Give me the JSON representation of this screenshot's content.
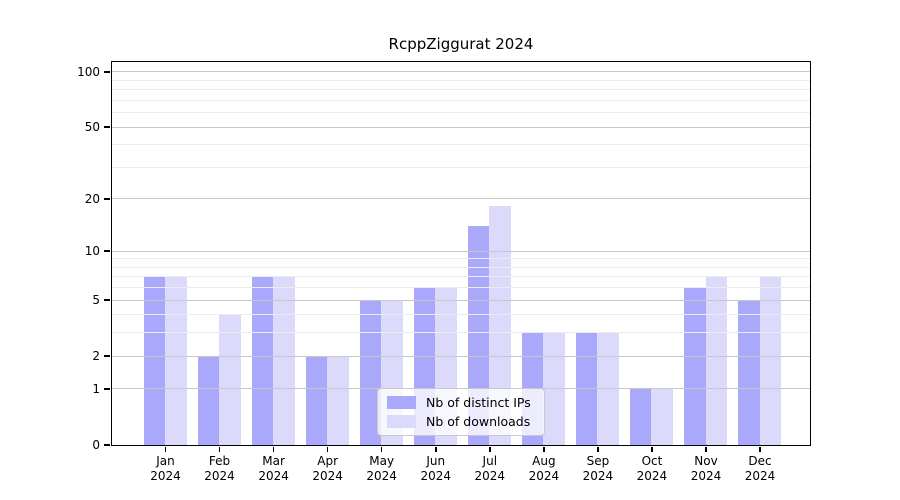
{
  "title": "RcppZiggurat 2024",
  "colors": {
    "bar_distinct_ips": "#a9a8fa",
    "bar_downloads": "#dcdafb",
    "grid_major": "#c8c8c8",
    "grid_minor": "#ececec",
    "axis": "#000000",
    "legend_border": "#c9c9c9",
    "legend_bg": "rgba(255,255,255,0.78)"
  },
  "legend": {
    "items": [
      {
        "label": "Nb of distinct IPs",
        "color_key": "bar_distinct_ips"
      },
      {
        "label": "Nb of downloads",
        "color_key": "bar_downloads"
      }
    ]
  },
  "chart_data": {
    "type": "bar",
    "title": "RcppZiggurat 2024",
    "yscale": "log1p",
    "categories": [
      "Jan",
      "Feb",
      "Mar",
      "Apr",
      "May",
      "Jun",
      "Jul",
      "Aug",
      "Sep",
      "Oct",
      "Nov",
      "Dec"
    ],
    "year_label": "2024",
    "series": [
      {
        "name": "Nb of distinct IPs",
        "color": "#a9a8fa",
        "values": [
          7,
          2,
          7,
          2,
          5,
          6,
          14,
          3,
          3,
          1,
          6,
          5
        ]
      },
      {
        "name": "Nb of downloads",
        "color": "#dcdafb",
        "values": [
          7,
          4,
          7,
          2,
          5,
          6,
          18,
          3,
          3,
          1,
          7,
          7
        ]
      }
    ],
    "yticks": [
      0,
      1,
      2,
      5,
      10,
      20,
      50,
      100
    ],
    "minor_gridlines": [
      3,
      4,
      6,
      7,
      8,
      9,
      30,
      40,
      60,
      70,
      80,
      90
    ],
    "ylim": [
      0,
      113
    ],
    "grid": true,
    "legend_position": "bottom-center"
  }
}
